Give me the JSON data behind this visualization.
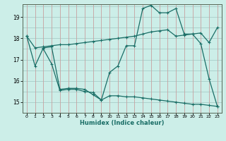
{
  "title": "",
  "xlabel": "Humidex (Indice chaleur)",
  "bg_color": "#cceee8",
  "line_color": "#1a6e66",
  "grid_color_v": "#c8a0a0",
  "grid_color_h": "#b0d8d4",
  "xlim": [
    -0.5,
    23.5
  ],
  "ylim": [
    14.5,
    19.6
  ],
  "yticks": [
    15,
    16,
    17,
    18,
    19
  ],
  "xticks": [
    0,
    1,
    2,
    3,
    4,
    5,
    6,
    7,
    8,
    9,
    10,
    11,
    12,
    13,
    14,
    15,
    16,
    17,
    18,
    19,
    20,
    21,
    22,
    23
  ],
  "line1_x": [
    0,
    1,
    2,
    3,
    4,
    5,
    6,
    7,
    8,
    9,
    10,
    11,
    12,
    13,
    14,
    15,
    16,
    17,
    18,
    19,
    20,
    21,
    22,
    23
  ],
  "line1_y": [
    18.1,
    17.55,
    17.6,
    17.65,
    17.7,
    17.7,
    17.75,
    17.8,
    17.85,
    17.9,
    17.95,
    18.0,
    18.05,
    18.1,
    18.2,
    18.3,
    18.35,
    18.4,
    18.1,
    18.15,
    18.2,
    18.25,
    17.8,
    18.5
  ],
  "line2_x": [
    0,
    1,
    2,
    3,
    4,
    5,
    6,
    7,
    8,
    9,
    10,
    11,
    12,
    13,
    14,
    15,
    16,
    17,
    18,
    19,
    20,
    21,
    22,
    23
  ],
  "line2_y": [
    18.1,
    16.7,
    17.55,
    17.6,
    15.6,
    15.65,
    15.65,
    15.6,
    15.35,
    15.1,
    16.4,
    16.7,
    17.65,
    17.65,
    19.4,
    19.55,
    19.2,
    19.2,
    19.4,
    18.2,
    18.2,
    17.75,
    16.1,
    14.8
  ],
  "line3_x": [
    2,
    3,
    4,
    5,
    6,
    7,
    8,
    9,
    10,
    11,
    12,
    13,
    14,
    15,
    16,
    17,
    18,
    19,
    20,
    21,
    22,
    23
  ],
  "line3_y": [
    17.5,
    16.8,
    15.55,
    15.6,
    15.6,
    15.5,
    15.45,
    15.1,
    15.3,
    15.3,
    15.25,
    15.25,
    15.2,
    15.15,
    15.1,
    15.05,
    15.0,
    14.95,
    14.9,
    14.9,
    14.85,
    14.8
  ]
}
